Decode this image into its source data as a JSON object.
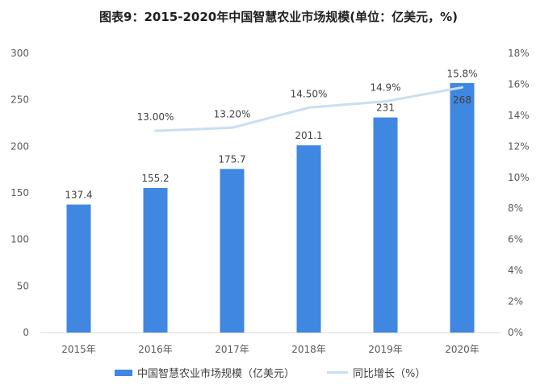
{
  "title": "图表9：2015-2020年中国智慧农业市场规模(单位：亿美元，%)",
  "chart_data": {
    "type": "bar",
    "categories": [
      "2015年",
      "2016年",
      "2017年",
      "2018年",
      "2019年",
      "2020年"
    ],
    "series": [
      {
        "name": "中国智慧农业市场规模（亿美元）",
        "type": "bar",
        "axis": "left",
        "values": [
          137.4,
          155.2,
          175.7,
          201.1,
          231,
          268
        ],
        "labels": [
          "137.4",
          "155.2",
          "175.7",
          "201.1",
          "231",
          "268"
        ],
        "color": "#3f87e0"
      },
      {
        "name": "同比增长（%）",
        "type": "line",
        "axis": "right",
        "values": [
          null,
          13.0,
          13.2,
          14.5,
          14.9,
          15.8
        ],
        "labels": [
          "",
          "13.00%",
          "13.20%",
          "14.50%",
          "14.9%",
          "15.8%"
        ],
        "color": "#c9def3"
      }
    ],
    "yleft": {
      "min": 0,
      "max": 300,
      "ticks": [
        "0",
        "50",
        "100",
        "150",
        "200",
        "250",
        "300"
      ]
    },
    "yright": {
      "min": 0,
      "max": 18,
      "ticks": [
        "0%",
        "2%",
        "4%",
        "6%",
        "8%",
        "10%",
        "12%",
        "14%",
        "16%",
        "18%"
      ]
    },
    "grid": false,
    "legend_position": "bottom"
  }
}
